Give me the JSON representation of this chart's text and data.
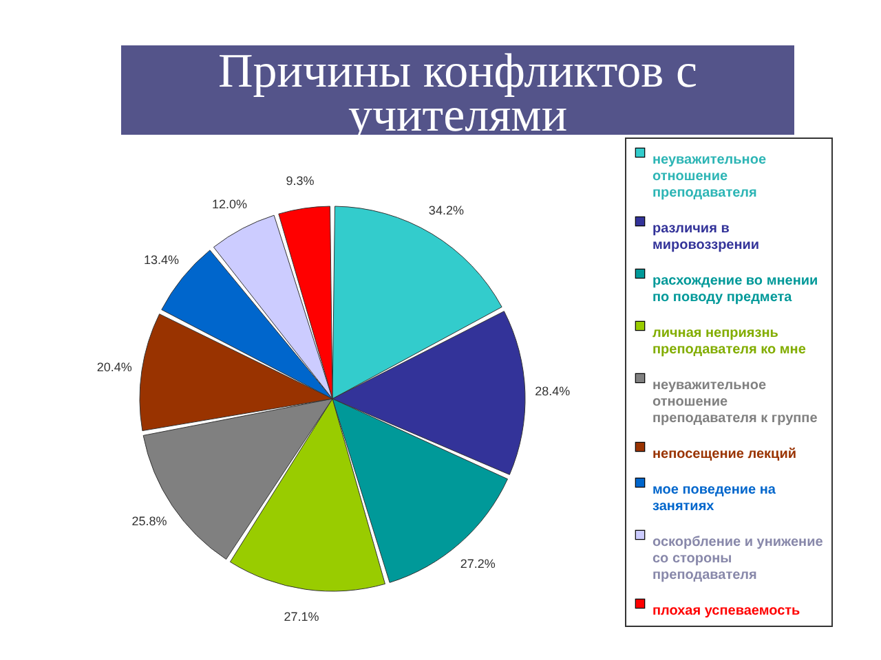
{
  "chart_data": {
    "type": "pie",
    "title": "Причины конфликтов с учителями",
    "categories": [
      "неуважительное отношение преподавателя",
      "различия в мировоззрении",
      "расхождение во мнении по поводу предмета",
      "личная неприязнь преподавателя ко мне",
      "неуважительное отношение преподавателя к группе",
      "непосещение лекций",
      "мое поведение на занятиях",
      "оскорбление и унижение со стороны преподавателя",
      "плохая успеваемость"
    ],
    "values": [
      34.2,
      28.4,
      27.2,
      27.1,
      25.8,
      20.4,
      13.4,
      12.0,
      9.3
    ],
    "colors": [
      "#33cccc",
      "#333399",
      "#009999",
      "#99cc00",
      "#808080",
      "#993300",
      "#0066cc",
      "#ccccff",
      "#ff0000"
    ],
    "value_labels": [
      "34.2%",
      "28.4%",
      "27.2%",
      "27.1%",
      "25.8%",
      "20.4%",
      "13.4%",
      "12.0%",
      "9.3%"
    ],
    "legend": "right"
  }
}
